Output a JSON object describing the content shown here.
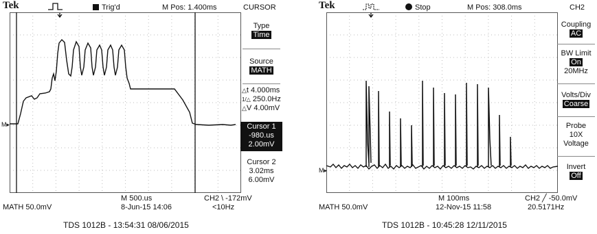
{
  "left": {
    "brand": "Tek",
    "trig_status": "Trig'd",
    "m_pos": "M Pos: 1.400ms",
    "menu_title": "CURSOR",
    "panel": {
      "type_label": "Type",
      "type_value": "Time",
      "source_label": "Source",
      "source_value": "MATH",
      "delta_t": "4.000ms",
      "inv_delta_t": "250.0Hz",
      "delta_v": "4.00mV",
      "cursor1_title": "Cursor 1",
      "cursor1_time": "-980.us",
      "cursor1_value": "2.00mV",
      "cursor2_title": "Cursor 2",
      "cursor2_time": "3.02ms",
      "cursor2_value": "6.00mV"
    },
    "bottom": {
      "math_scale": "MATH 50.0mV",
      "timebase": "M 500.us",
      "date_time": "8-Jun-15 14:06",
      "trigger": "CH2 \\ -172mV",
      "freq": "<10Hz"
    },
    "caption": "TDS 1012B - 13:54:31  08/06/2015"
  },
  "right": {
    "brand": "Tek",
    "run_status": "Stop",
    "m_pos": "M Pos: 308.0ms",
    "menu_title": "CH2",
    "panel": {
      "coupling_label": "Coupling",
      "coupling_value": "AC",
      "bw_label": "BW Limit",
      "bw_value": "On",
      "bw_sub": "20MHz",
      "vdiv_label": "Volts/Div",
      "vdiv_value": "Coarse",
      "probe_label": "Probe",
      "probe_value": "10X",
      "probe_sub": "Voltage",
      "invert_label": "Invert",
      "invert_value": "Off"
    },
    "bottom": {
      "math_scale": "MATH 50.0mV",
      "timebase": "M 100ms",
      "date_time": "12-Nov-15 11:58",
      "trigger": "CH2 ╱ -50.0mV",
      "freq": "20.5171Hz"
    },
    "caption": "TDS 1012B - 10:45:28  12/11/2015"
  },
  "icons": {
    "delta": "△",
    "ground_marker": "M▸",
    "trigger_arrow": "↓"
  }
}
